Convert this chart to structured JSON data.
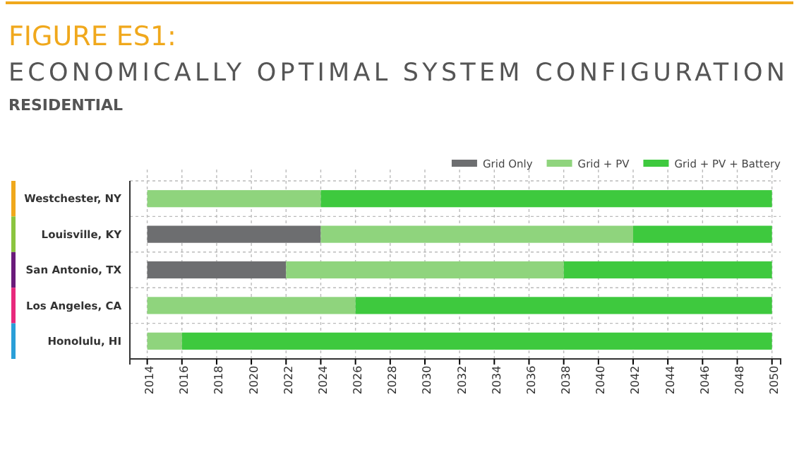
{
  "chart_data": {
    "type": "bar",
    "orientation": "horizontal",
    "title": "FIGURE ES1:",
    "subtitle": "ECONOMICALLY OPTIMAL SYSTEM CONFIGURATION",
    "annotations": [
      "RESIDENTIAL"
    ],
    "categories": [
      "Westchester, NY",
      "Louisville, KY",
      "San Antonio, TX",
      "Los Angeles, CA",
      "Honolulu, HI"
    ],
    "series": [
      {
        "name": "Grid Only",
        "color": "#6d6e70",
        "base": [
          null,
          2014,
          2014,
          null,
          null
        ],
        "values": [
          null,
          10,
          8,
          null,
          null
        ]
      },
      {
        "name": "Grid + PV",
        "color": "#8fd47d",
        "base": [
          2014,
          2024,
          2022,
          2014,
          2014
        ],
        "values": [
          10,
          18,
          16,
          12,
          2
        ]
      },
      {
        "name": "Grid + PV + Battery",
        "color": "#3ec93e",
        "base": [
          2024,
          2042,
          2038,
          2026,
          2016
        ],
        "values": [
          26,
          8,
          12,
          24,
          34
        ]
      }
    ],
    "xlim": [
      2013,
      2050.5
    ],
    "xticks": [
      2014,
      2016,
      2018,
      2020,
      2022,
      2024,
      2026,
      2028,
      2030,
      2032,
      2034,
      2036,
      2038,
      2040,
      2042,
      2044,
      2046,
      2048,
      2050
    ],
    "grid": true,
    "legend": "top right"
  }
}
